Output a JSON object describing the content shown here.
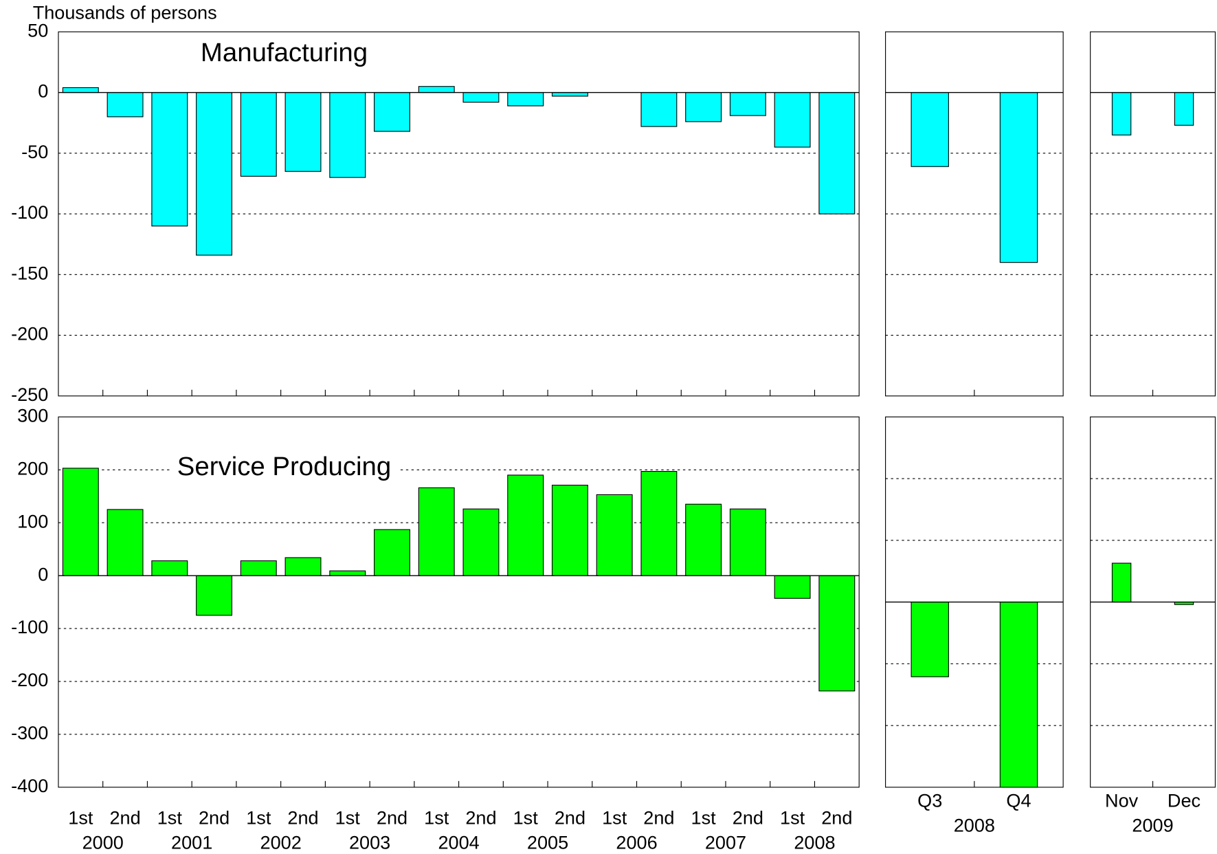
{
  "chart_data": [
    {
      "type": "bar",
      "title": "Manufacturing",
      "y_axis_label": "Thousands of persons",
      "categories": [
        null,
        null,
        null,
        null,
        null,
        null,
        null,
        null,
        null,
        null,
        null,
        null,
        null,
        null,
        null,
        null,
        null,
        null
      ],
      "values": [
        4,
        -20,
        -110,
        -134,
        -69,
        -65,
        -70,
        -32,
        5,
        -8,
        -11,
        -3,
        0,
        -28,
        -24,
        -19,
        -45,
        -100
      ],
      "color": "#00ffff",
      "ylim": [
        -250,
        50
      ],
      "yticks": [
        -250,
        -200,
        -150,
        -100,
        -50,
        0,
        50
      ],
      "grid": true,
      "show_ytick_labels": true
    },
    {
      "type": "bar",
      "categories": [
        null,
        null
      ],
      "values": [
        -61,
        -140
      ],
      "color": "#00ffff",
      "ylim": [
        -250,
        50
      ],
      "yticks": [
        -250,
        -200,
        -150,
        -100,
        -50,
        0,
        50
      ],
      "grid": true,
      "show_ytick_labels": false
    },
    {
      "type": "bar",
      "categories": [
        null,
        null
      ],
      "values": [
        -35,
        -27
      ],
      "color": "#00ffff",
      "ylim": [
        -250,
        50
      ],
      "yticks": [
        -250,
        -200,
        -150,
        -100,
        -50,
        0,
        50
      ],
      "grid": true,
      "show_ytick_labels": false
    },
    {
      "type": "bar",
      "title": "Service Producing",
      "categories": [
        "1st",
        "2nd",
        "1st",
        "2nd",
        "1st",
        "2nd",
        "1st",
        "2nd",
        "1st",
        "2nd",
        "1st",
        "2nd",
        "1st",
        "2nd",
        "1st",
        "2nd",
        "1st",
        "2nd"
      ],
      "group_labels": [
        "2000",
        "2001",
        "2002",
        "2003",
        "2004",
        "2005",
        "2006",
        "2007",
        "2008"
      ],
      "values": [
        203,
        125,
        28,
        -75,
        28,
        34,
        9,
        87,
        166,
        126,
        190,
        171,
        153,
        197,
        135,
        126,
        -43,
        -218
      ],
      "color": "#00ff00",
      "ylim": [
        -400,
        300
      ],
      "yticks": [
        -400,
        -300,
        -200,
        -100,
        0,
        100,
        200,
        300
      ],
      "grid": true,
      "show_ytick_labels": true
    },
    {
      "type": "bar",
      "categories": [
        "Q3",
        "Q4"
      ],
      "group_labels": [
        "2008"
      ],
      "values": [
        -121,
        -300
      ],
      "color": "#00ff00",
      "ylim": [
        -300,
        300
      ],
      "yticks": [
        -300,
        -200,
        -100,
        0,
        100,
        200,
        300
      ],
      "grid": true,
      "show_ytick_labels": false
    },
    {
      "type": "bar",
      "categories": [
        "Nov",
        "Dec"
      ],
      "group_labels": [
        "2009"
      ],
      "values": [
        63,
        -4
      ],
      "color": "#00ff00",
      "ylim": [
        -300,
        300
      ],
      "yticks": [
        -300,
        -200,
        -100,
        0,
        100,
        200,
        300
      ],
      "grid": true,
      "show_ytick_labels": false
    }
  ]
}
